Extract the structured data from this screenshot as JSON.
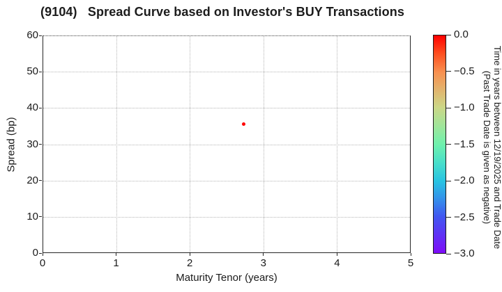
{
  "chart_data": {
    "type": "scatter",
    "title": "(9104)   Spread Curve based on Investor's BUY Transactions",
    "xlabel": "Maturity Tenor (years)",
    "ylabel": "Spread (bp)",
    "xlim": [
      0,
      5
    ],
    "ylim": [
      0,
      60
    ],
    "xticks": [
      0,
      1,
      2,
      3,
      4,
      5
    ],
    "yticks": [
      0,
      10,
      20,
      30,
      40,
      50,
      60
    ],
    "grid": true,
    "grid_style": "dotted",
    "legend": "none",
    "points": [
      {
        "x": 2.72,
        "y": 35.7,
        "time_value": 0.0,
        "color": "#ff0000"
      }
    ],
    "colorbar": {
      "min": -3.0,
      "max": 0.0,
      "tick_labels": [
        "0.0",
        "−0.5",
        "−1.0",
        "−1.5",
        "−2.0",
        "−2.5",
        "−3.0"
      ],
      "label_lines": [
        "Time in years between 12/19/2025 and Trade Date",
        "(Past Trade Date is given as negative)"
      ],
      "gradient_stops": [
        {
          "pos": 0,
          "color": "#ff0000"
        },
        {
          "pos": 8,
          "color": "#fe4c1e"
        },
        {
          "pos": 17,
          "color": "#f89150"
        },
        {
          "pos": 25,
          "color": "#e2b46e"
        },
        {
          "pos": 33,
          "color": "#ccd787"
        },
        {
          "pos": 42,
          "color": "#9ee69b"
        },
        {
          "pos": 50,
          "color": "#6ff1ad"
        },
        {
          "pos": 58,
          "color": "#4be0c8"
        },
        {
          "pos": 67,
          "color": "#28c3e2"
        },
        {
          "pos": 75,
          "color": "#3492ea"
        },
        {
          "pos": 83,
          "color": "#4158f0"
        },
        {
          "pos": 92,
          "color": "#6030f5"
        },
        {
          "pos": 100,
          "color": "#7e0cf8"
        }
      ]
    }
  }
}
